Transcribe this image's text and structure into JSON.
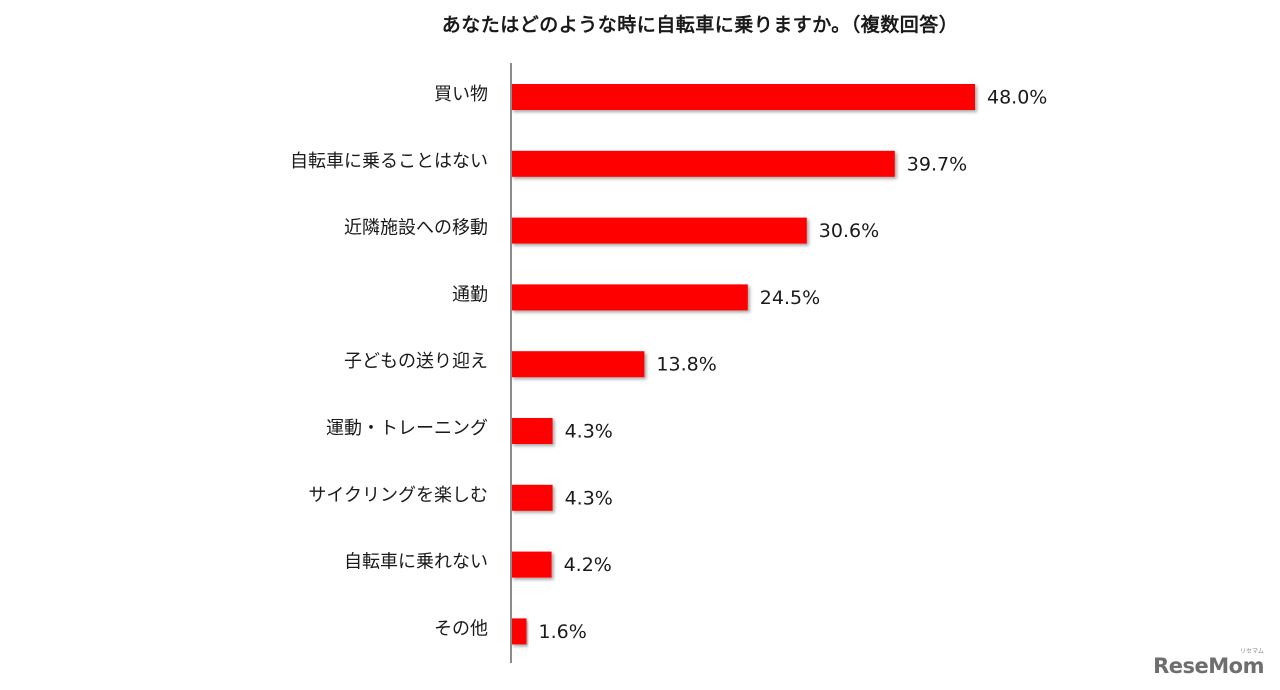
{
  "chart_data": {
    "type": "bar",
    "orientation": "horizontal",
    "title": "あなたはどのような時に自転車に乗りますか。（複数回答）",
    "categories": [
      "買い物",
      "自転車に乗ることはない",
      "近隣施設への移動",
      "通勤",
      "子どもの送り迎え",
      "運動・トレーニング",
      "サイクリングを楽しむ",
      "自転車に乗れない",
      "その他"
    ],
    "values": [
      48.0,
      39.7,
      30.6,
      24.5,
      13.8,
      4.3,
      4.3,
      4.2,
      1.6
    ],
    "value_labels": [
      "48.0%",
      "39.7%",
      "30.6%",
      "24.5%",
      "13.8%",
      "4.3%",
      "4.3%",
      "4.2%",
      "1.6%"
    ],
    "xlim": [
      0,
      60
    ],
    "grid": false,
    "bar_color": "#ff0000"
  },
  "watermark": {
    "text": "ReseMom",
    "ruby": "リセマム"
  }
}
